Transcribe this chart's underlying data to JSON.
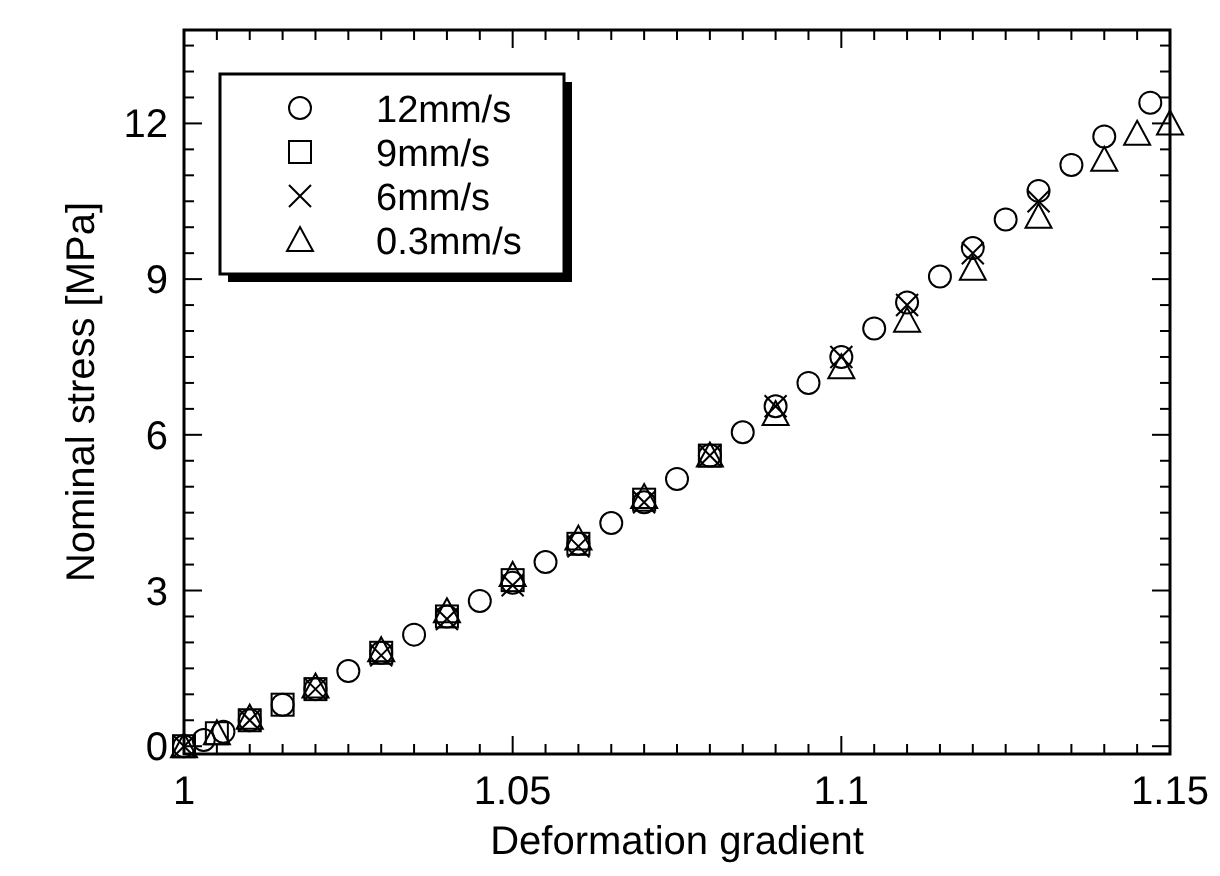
{
  "chart_data": {
    "type": "scatter",
    "xlabel": "Deformation gradient",
    "ylabel": "Nominal stress [MPa]",
    "xlim": [
      1,
      1.15
    ],
    "ylim": [
      -0.15,
      13.8
    ],
    "xticks": [
      1,
      {
        "value": 1.005,
        "label": null
      },
      {
        "value": 1.01,
        "label": null
      },
      {
        "value": 1.015,
        "label": null
      },
      {
        "value": 1.02,
        "label": null
      },
      {
        "value": 1.025,
        "label": null
      },
      {
        "value": 1.03,
        "label": null
      },
      {
        "value": 1.035,
        "label": null
      },
      {
        "value": 1.04,
        "label": null
      },
      {
        "value": 1.045,
        "label": null
      },
      1.05,
      {
        "value": 1.055,
        "label": null
      },
      {
        "value": 1.06,
        "label": null
      },
      {
        "value": 1.065,
        "label": null
      },
      {
        "value": 1.07,
        "label": null
      },
      {
        "value": 1.075,
        "label": null
      },
      {
        "value": 1.08,
        "label": null
      },
      {
        "value": 1.085,
        "label": null
      },
      {
        "value": 1.09,
        "label": null
      },
      {
        "value": 1.095,
        "label": null
      },
      1.1,
      {
        "value": 1.105,
        "label": null
      },
      {
        "value": 1.11,
        "label": null
      },
      {
        "value": 1.115,
        "label": null
      },
      {
        "value": 1.12,
        "label": null
      },
      {
        "value": 1.125,
        "label": null
      },
      {
        "value": 1.13,
        "label": null
      },
      {
        "value": 1.135,
        "label": null
      },
      {
        "value": 1.14,
        "label": null
      },
      {
        "value": 1.145,
        "label": null
      },
      1.15
    ],
    "yticks": [
      0,
      {
        "value": 0.5,
        "label": null
      },
      {
        "value": 1,
        "label": null
      },
      {
        "value": 1.5,
        "label": null
      },
      {
        "value": 2,
        "label": null
      },
      {
        "value": 2.5,
        "label": null
      },
      3,
      {
        "value": 3.5,
        "label": null
      },
      {
        "value": 4,
        "label": null
      },
      {
        "value": 4.5,
        "label": null
      },
      {
        "value": 5,
        "label": null
      },
      {
        "value": 5.5,
        "label": null
      },
      6,
      {
        "value": 6.5,
        "label": null
      },
      {
        "value": 7,
        "label": null
      },
      {
        "value": 7.5,
        "label": null
      },
      {
        "value": 8,
        "label": null
      },
      {
        "value": 8.5,
        "label": null
      },
      9,
      {
        "value": 9.5,
        "label": null
      },
      {
        "value": 10,
        "label": null
      },
      {
        "value": 10.5,
        "label": null
      },
      {
        "value": 11,
        "label": null
      },
      {
        "value": 11.5,
        "label": null
      },
      12,
      {
        "value": 12.5,
        "label": null
      },
      {
        "value": 13,
        "label": null
      },
      {
        "value": 13.5,
        "label": null
      }
    ],
    "grid": false,
    "legend": "top left",
    "series": [
      {
        "name": "12mm/s",
        "color": "#000000",
        "marker": "circle",
        "x": [
          1,
          1.003,
          1.006,
          1.01,
          1.015,
          1.02,
          1.025,
          1.03,
          1.035,
          1.04,
          1.045,
          1.05,
          1.055,
          1.06,
          1.065,
          1.07,
          1.075,
          1.08,
          1.085,
          1.09,
          1.095,
          1.1,
          1.105,
          1.11,
          1.115,
          1.12,
          1.125,
          1.13,
          1.135,
          1.14,
          1.147
        ],
        "values": [
          0,
          0.12,
          0.28,
          0.5,
          0.8,
          1.1,
          1.45,
          1.8,
          2.15,
          2.5,
          2.8,
          3.15,
          3.55,
          3.9,
          4.3,
          4.7,
          5.15,
          5.6,
          6.05,
          6.55,
          7,
          7.5,
          8.05,
          8.55,
          9.05,
          9.6,
          10.15,
          10.7,
          11.2,
          11.75,
          12.4
        ]
      },
      {
        "name": "9mm/s",
        "color": "#000000",
        "marker": "square",
        "x": [
          1,
          1.005,
          1.01,
          1.015,
          1.02,
          1.03,
          1.04,
          1.05,
          1.06,
          1.07,
          1.08
        ],
        "values": [
          0,
          0.25,
          0.5,
          0.8,
          1.1,
          1.8,
          2.5,
          3.2,
          3.9,
          4.75,
          5.6
        ]
      },
      {
        "name": "6mm/s",
        "color": "#000000",
        "marker": "cross",
        "x": [
          1,
          1.01,
          1.02,
          1.03,
          1.04,
          1.05,
          1.06,
          1.07,
          1.08,
          1.09,
          1.1,
          1.11,
          1.12,
          1.13
        ],
        "values": [
          0,
          0.5,
          1.1,
          1.75,
          2.45,
          3.1,
          3.85,
          4.7,
          5.6,
          6.55,
          7.5,
          8.5,
          9.5,
          10.5
        ]
      },
      {
        "name": "0.3mm/s",
        "color": "#000000",
        "marker": "triangle",
        "x": [
          1,
          1.005,
          1.01,
          1.02,
          1.03,
          1.04,
          1.05,
          1.06,
          1.07,
          1.08,
          1.09,
          1.1,
          1.11,
          1.12,
          1.13,
          1.14,
          1.145,
          1.15
        ],
        "values": [
          0,
          0.25,
          0.55,
          1.15,
          1.85,
          2.6,
          3.3,
          4,
          4.8,
          5.6,
          6.4,
          7.3,
          8.2,
          9.2,
          10.2,
          11.3,
          11.8,
          12
        ]
      }
    ]
  }
}
